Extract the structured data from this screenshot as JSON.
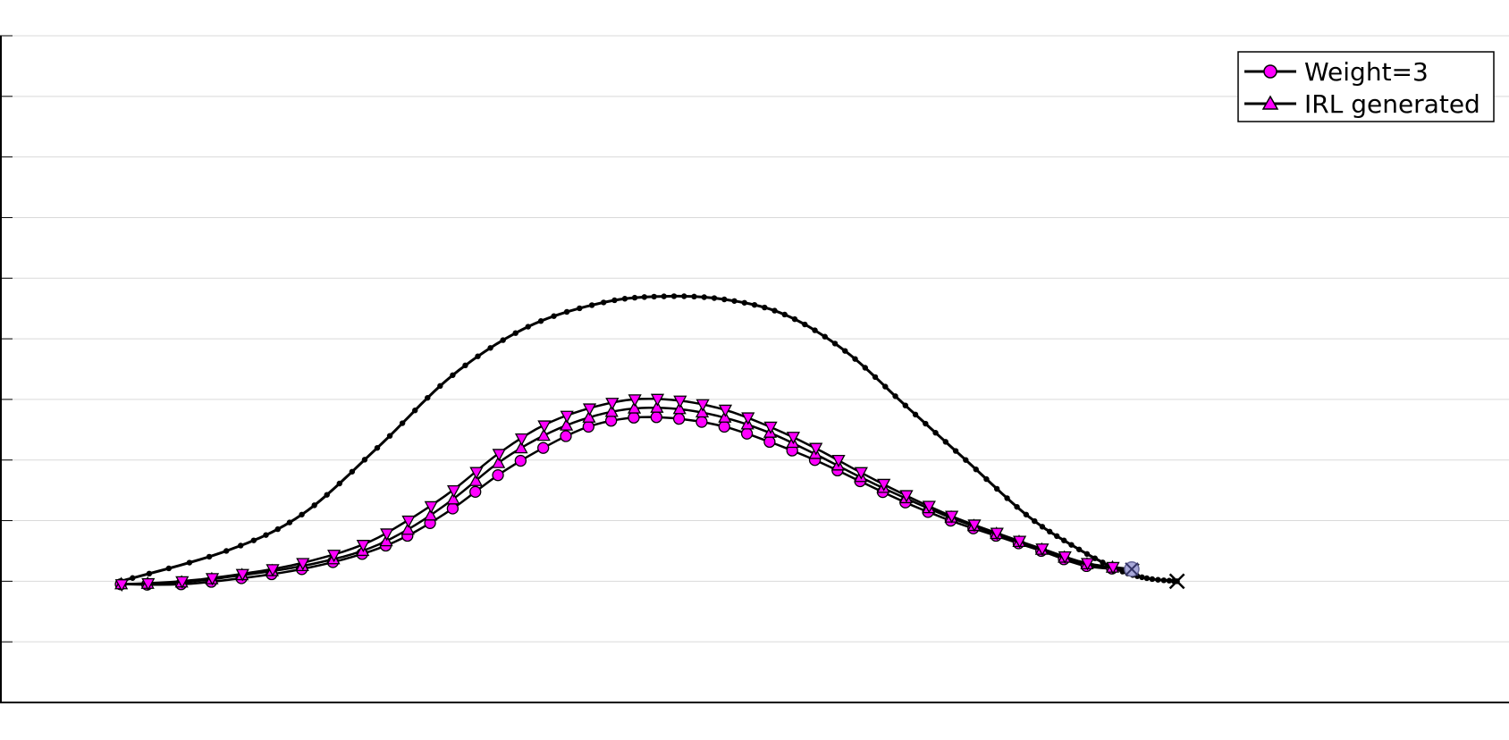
{
  "chart_data": {
    "type": "line",
    "title": "",
    "xlabel": "",
    "ylabel": "",
    "xlim": [
      0,
      1
    ],
    "ylim": [
      0,
      1
    ],
    "yticks": [
      0,
      0.1,
      0.2,
      0.3,
      0.4,
      0.5,
      0.6,
      0.7,
      0.8,
      0.9,
      1.0,
      1.1
    ],
    "grid": true,
    "legend": {
      "placement": "top-right",
      "entries": [
        "Weight=3",
        "IRL generated"
      ]
    },
    "series": [
      {
        "name": "",
        "role": "reference",
        "marker": "small-dot",
        "color": "#000000",
        "points": [
          [
            0.08,
            0.2
          ],
          [
            0.15,
            0.25
          ],
          [
            0.2,
            0.31
          ],
          [
            0.25,
            0.42
          ],
          [
            0.3,
            0.54
          ],
          [
            0.35,
            0.62
          ],
          [
            0.4,
            0.66
          ],
          [
            0.44,
            0.67
          ],
          [
            0.48,
            0.665
          ],
          [
            0.52,
            0.64
          ],
          [
            0.56,
            0.58
          ],
          [
            0.6,
            0.49
          ],
          [
            0.64,
            0.4
          ],
          [
            0.68,
            0.31
          ],
          [
            0.71,
            0.26
          ],
          [
            0.74,
            0.22
          ],
          [
            0.76,
            0.205
          ],
          [
            0.78,
            0.2
          ]
        ]
      },
      {
        "name": "Weight=3",
        "marker": "circle",
        "color": "#ff00ff",
        "points": [
          [
            0.08,
            0.195
          ],
          [
            0.12,
            0.195
          ],
          [
            0.16,
            0.205
          ],
          [
            0.2,
            0.22
          ],
          [
            0.24,
            0.245
          ],
          [
            0.27,
            0.275
          ],
          [
            0.3,
            0.32
          ],
          [
            0.33,
            0.375
          ],
          [
            0.36,
            0.42
          ],
          [
            0.39,
            0.455
          ],
          [
            0.42,
            0.47
          ],
          [
            0.45,
            0.468
          ],
          [
            0.48,
            0.455
          ],
          [
            0.51,
            0.43
          ],
          [
            0.54,
            0.4
          ],
          [
            0.57,
            0.365
          ],
          [
            0.6,
            0.33
          ],
          [
            0.63,
            0.3
          ],
          [
            0.66,
            0.275
          ],
          [
            0.69,
            0.25
          ],
          [
            0.72,
            0.225
          ],
          [
            0.75,
            0.22
          ]
        ]
      },
      {
        "name": "IRL generated",
        "marker": "triangle-up",
        "color": "#ff00ff",
        "points": [
          [
            0.08,
            0.195
          ],
          [
            0.12,
            0.198
          ],
          [
            0.16,
            0.21
          ],
          [
            0.2,
            0.225
          ],
          [
            0.24,
            0.25
          ],
          [
            0.27,
            0.285
          ],
          [
            0.3,
            0.335
          ],
          [
            0.33,
            0.395
          ],
          [
            0.36,
            0.44
          ],
          [
            0.39,
            0.47
          ],
          [
            0.42,
            0.485
          ],
          [
            0.45,
            0.484
          ],
          [
            0.48,
            0.47
          ],
          [
            0.51,
            0.445
          ],
          [
            0.54,
            0.41
          ],
          [
            0.57,
            0.372
          ],
          [
            0.6,
            0.337
          ],
          [
            0.63,
            0.305
          ],
          [
            0.66,
            0.278
          ],
          [
            0.69,
            0.252
          ],
          [
            0.72,
            0.228
          ],
          [
            0.75,
            0.22
          ]
        ]
      },
      {
        "name": "",
        "marker": "triangle-down",
        "color": "#ff00ff",
        "points": [
          [
            0.08,
            0.195
          ],
          [
            0.12,
            0.2
          ],
          [
            0.16,
            0.212
          ],
          [
            0.2,
            0.23
          ],
          [
            0.24,
            0.26
          ],
          [
            0.27,
            0.3
          ],
          [
            0.3,
            0.35
          ],
          [
            0.33,
            0.41
          ],
          [
            0.36,
            0.457
          ],
          [
            0.39,
            0.485
          ],
          [
            0.42,
            0.5
          ],
          [
            0.45,
            0.498
          ],
          [
            0.48,
            0.483
          ],
          [
            0.51,
            0.455
          ],
          [
            0.54,
            0.42
          ],
          [
            0.57,
            0.38
          ],
          [
            0.6,
            0.342
          ],
          [
            0.63,
            0.308
          ],
          [
            0.66,
            0.28
          ],
          [
            0.69,
            0.254
          ],
          [
            0.72,
            0.23
          ],
          [
            0.75,
            0.22
          ]
        ]
      }
    ]
  }
}
